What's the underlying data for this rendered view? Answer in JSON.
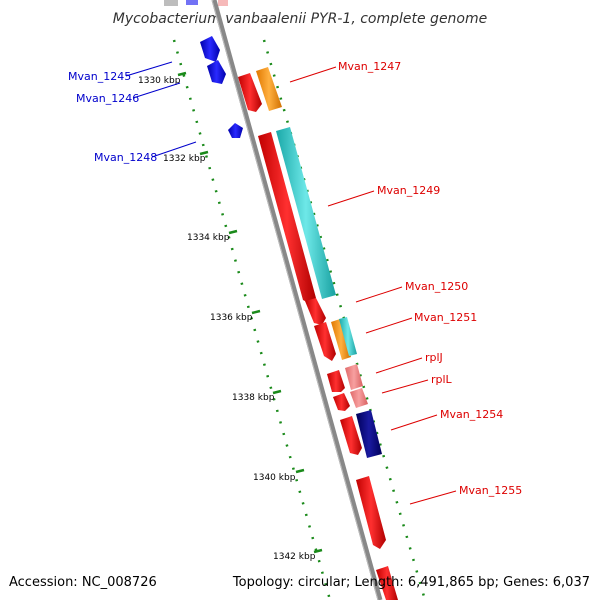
{
  "title": "Mycobacterium vanbaalenii PYR-1, complete genome",
  "accession": "Accession: NC_008726",
  "summary": "Topology: circular; Length: 6,491,865 bp; Genes: 6,037",
  "ticks": [
    "1330 kbp",
    "1332 kbp",
    "1334 kbp",
    "1336 kbp",
    "1338 kbp",
    "1340 kbp",
    "1342 kbp"
  ],
  "genes_left": [
    "Mvan_1245",
    "Mvan_1246",
    "Mvan_1248"
  ],
  "genes_right": [
    "Mvan_1247",
    "Mvan_1249",
    "Mvan_1250",
    "Mvan_1251",
    "rplJ",
    "rplL",
    "Mvan_1254",
    "Mvan_1255"
  ],
  "colors": {
    "reverse_strand": "#0000ee",
    "forward_strand": "#ee0000",
    "orange_feature": "#ff9900",
    "cyan_feature": "#22cccc",
    "navy_feature": "#000080",
    "pink_feature": "#f08080",
    "dotted_track": "#1a8a1a",
    "backbone": "#888888"
  }
}
